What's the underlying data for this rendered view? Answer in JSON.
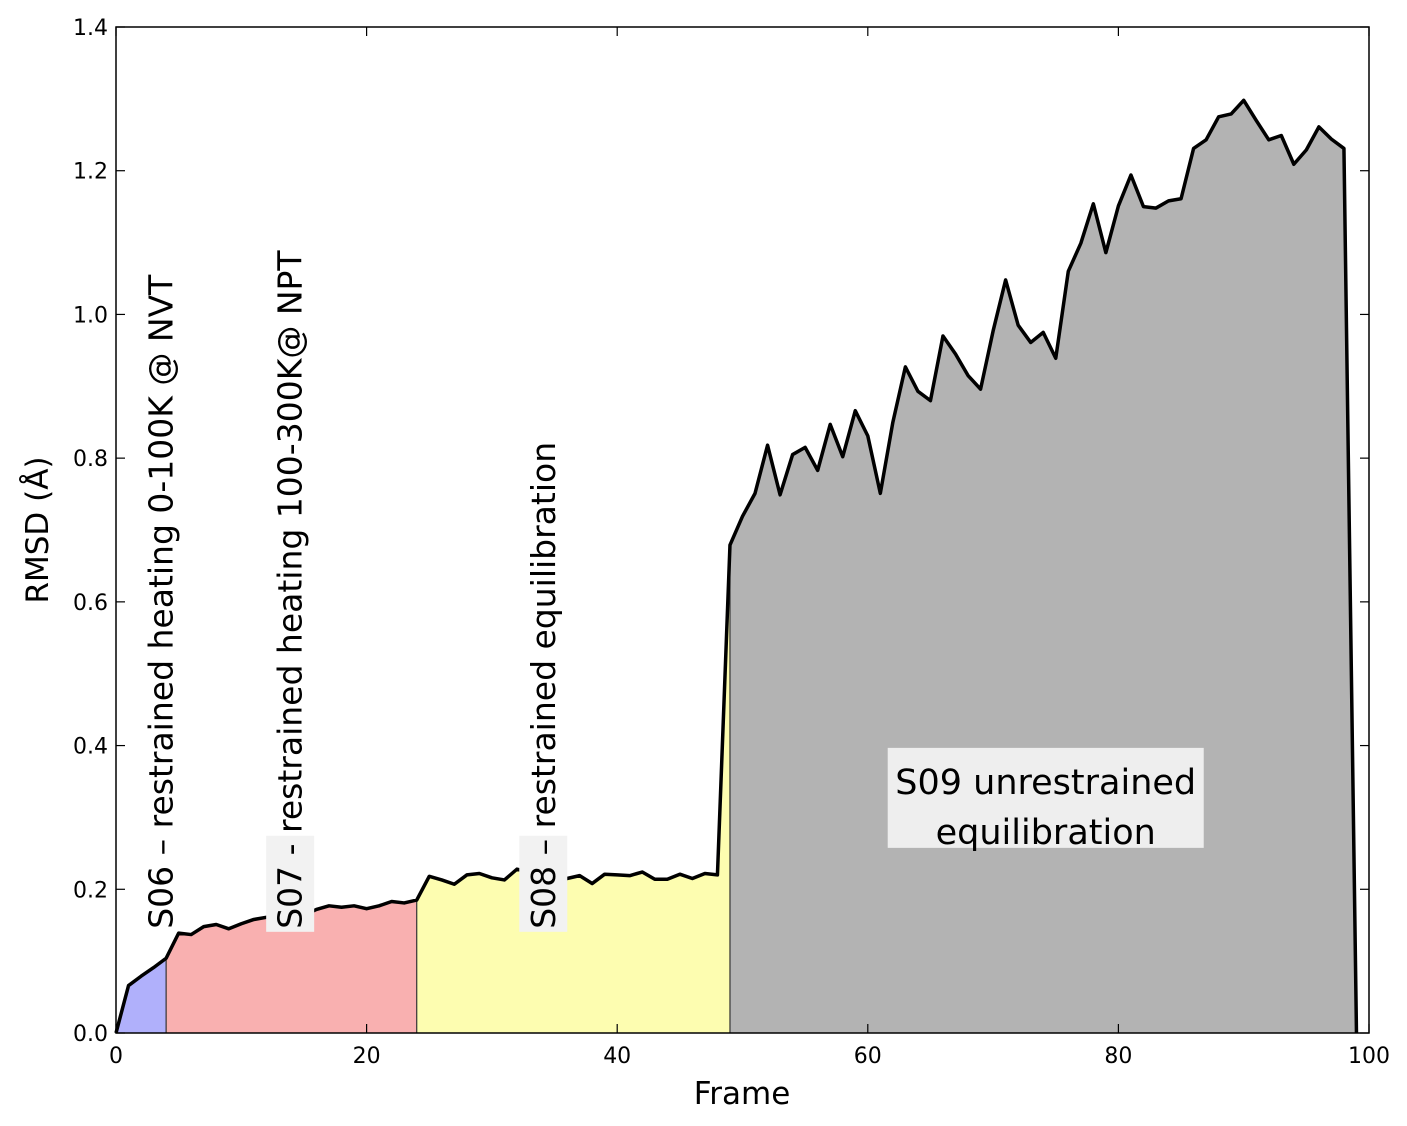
{
  "chart_data": {
    "type": "area",
    "xlabel": "Frame",
    "ylabel": "RMSD (Å)",
    "xlim": [
      0,
      100
    ],
    "ylim": [
      0.0,
      1.4
    ],
    "xticks": [
      0,
      20,
      40,
      60,
      80,
      100
    ],
    "xtick_labels": [
      "0",
      "20",
      "40",
      "60",
      "80",
      "100"
    ],
    "yticks": [
      0.0,
      0.2,
      0.4,
      0.6,
      0.8,
      1.0,
      1.2,
      1.4
    ],
    "ytick_labels": [
      "0.0",
      "0.2",
      "0.4",
      "0.6",
      "0.8",
      "1.0",
      "1.2",
      "1.4"
    ],
    "grid": false,
    "x": [
      0,
      1,
      2,
      3,
      4,
      5,
      6,
      7,
      8,
      9,
      10,
      11,
      12,
      13,
      14,
      15,
      16,
      17,
      18,
      19,
      20,
      21,
      22,
      23,
      24,
      25,
      26,
      27,
      28,
      29,
      30,
      31,
      32,
      33,
      34,
      35,
      36,
      37,
      38,
      39,
      40,
      41,
      42,
      43,
      44,
      45,
      46,
      47,
      48,
      49,
      50,
      51,
      52,
      53,
      54,
      55,
      56,
      57,
      58,
      59,
      60,
      61,
      62,
      63,
      64,
      65,
      66,
      67,
      68,
      69,
      70,
      71,
      72,
      73,
      74,
      75,
      76,
      77,
      78,
      79,
      80,
      81,
      82,
      83,
      84,
      85,
      86,
      87,
      88,
      89,
      90,
      91,
      92,
      93,
      94,
      95,
      96,
      97,
      98,
      99
    ],
    "y": [
      0.0,
      0.066,
      0.079,
      0.091,
      0.104,
      0.139,
      0.137,
      0.148,
      0.151,
      0.145,
      0.152,
      0.158,
      0.161,
      0.161,
      0.165,
      0.164,
      0.172,
      0.177,
      0.175,
      0.177,
      0.173,
      0.177,
      0.183,
      0.181,
      0.185,
      0.218,
      0.213,
      0.207,
      0.22,
      0.222,
      0.216,
      0.213,
      0.228,
      0.224,
      0.226,
      0.213,
      0.215,
      0.219,
      0.208,
      0.221,
      0.22,
      0.219,
      0.224,
      0.214,
      0.214,
      0.221,
      0.215,
      0.222,
      0.22,
      0.679,
      0.719,
      0.751,
      0.818,
      0.749,
      0.805,
      0.815,
      0.783,
      0.847,
      0.802,
      0.866,
      0.831,
      0.751,
      0.85,
      0.927,
      0.893,
      0.88,
      0.97,
      0.945,
      0.915,
      0.896,
      0.977,
      1.048,
      0.985,
      0.961,
      0.975,
      0.939,
      1.06,
      1.099,
      1.154,
      1.086,
      1.151,
      1.194,
      1.15,
      1.148,
      1.158,
      1.161,
      1.231,
      1.243,
      1.275,
      1.279,
      1.298,
      1.27,
      1.243,
      1.249,
      1.209,
      1.229,
      1.261,
      1.244,
      1.231,
      0.0
    ],
    "regions": [
      {
        "from": 0,
        "to": 4,
        "color": "#b0b0fb"
      },
      {
        "from": 4,
        "to": 24,
        "color": "#f9b0b0"
      },
      {
        "from": 24,
        "to": 49,
        "color": "#fdfdb0"
      },
      {
        "from": 49,
        "to": 99,
        "color": "#b3b3b3"
      }
    ],
    "annotations": [
      {
        "text": "S06 – restrained heating 0-100K @ NVT",
        "x": 3.6,
        "y": 0.145,
        "rotation": -90,
        "boxed": false
      },
      {
        "text": "S07 - restrained  heating 100-300K@ NPT",
        "x": 13.9,
        "y": 0.145,
        "rotation": -90,
        "boxed": true
      },
      {
        "text": "S08 – restrained  equilibration",
        "x": 34.1,
        "y": 0.145,
        "rotation": -90,
        "boxed": true
      },
      {
        "text_lines": [
          "S09 unrestrained",
          "equilibration"
        ],
        "x": 74.2,
        "y": 0.33,
        "rotation": 0,
        "boxed": true
      }
    ]
  }
}
